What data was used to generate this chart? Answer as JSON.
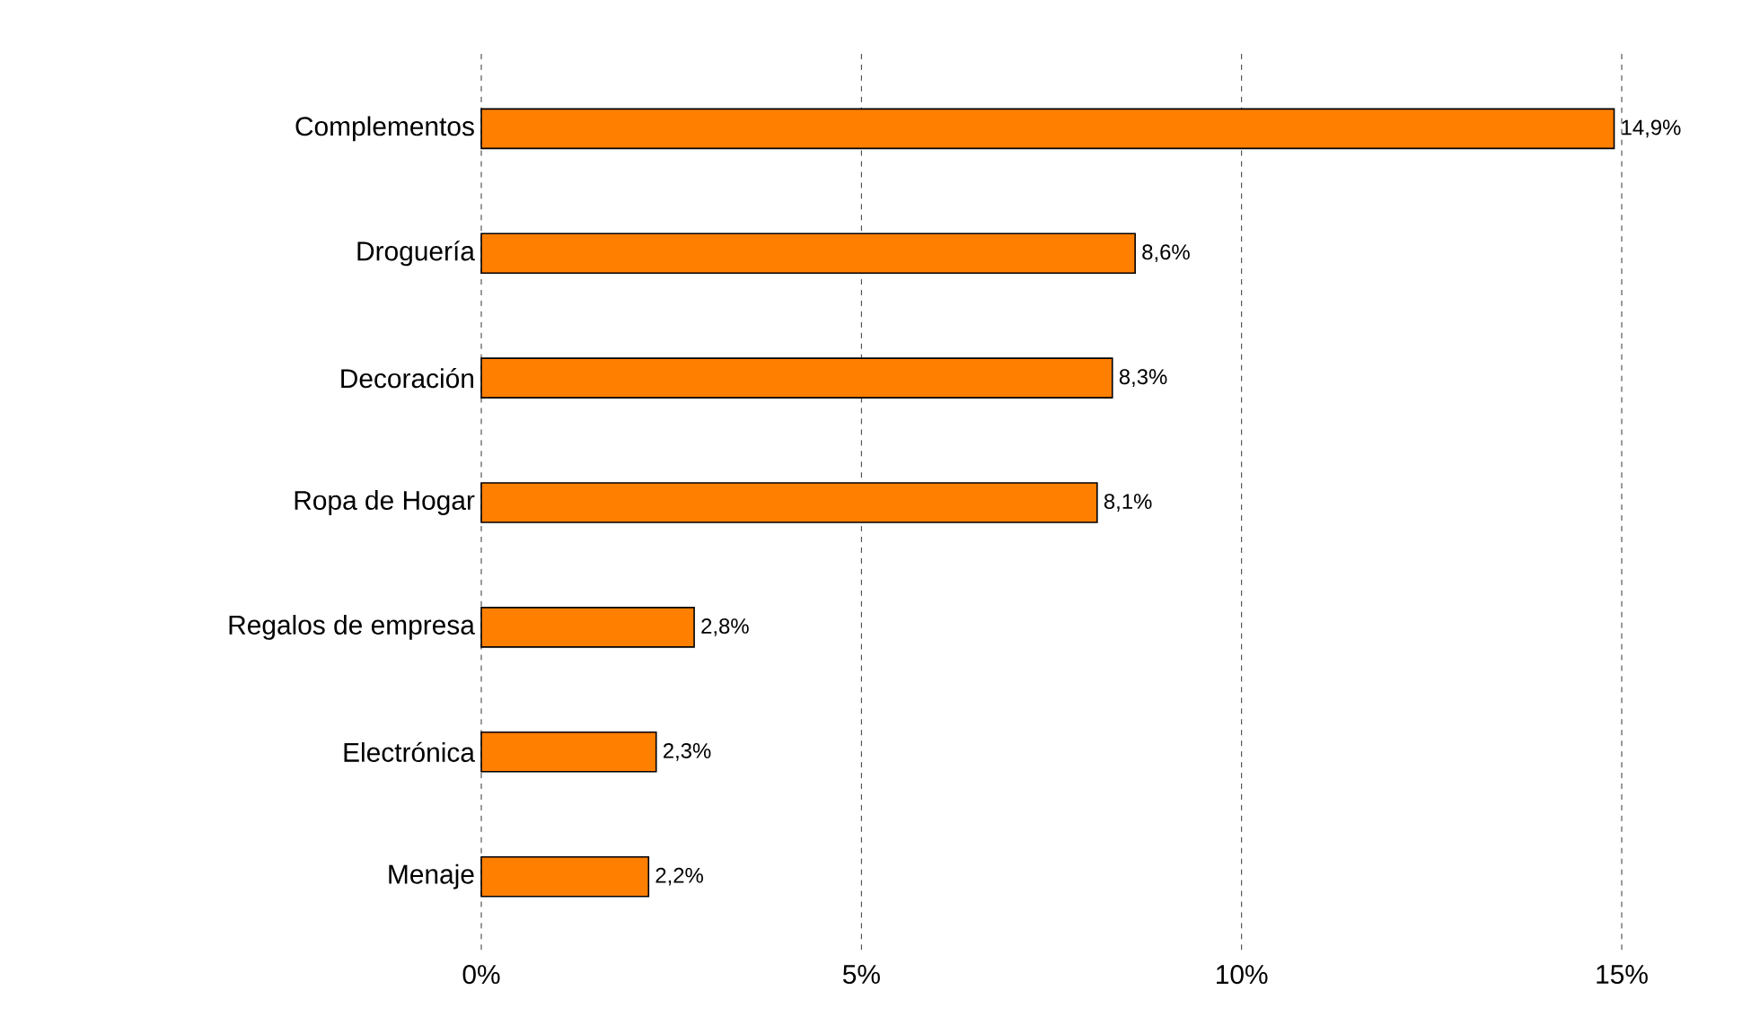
{
  "chart_data": {
    "type": "bar",
    "orientation": "horizontal",
    "categories": [
      "Complementos",
      "Droguería",
      "Decoración",
      "Ropa de Hogar",
      "Regalos de empresa",
      "Electrónica",
      "Menaje"
    ],
    "values": [
      14.9,
      8.6,
      8.3,
      8.1,
      2.8,
      2.3,
      2.2
    ],
    "value_labels": [
      "14,9%",
      "8,6%",
      "8,3%",
      "8,1%",
      "2,8%",
      "2,3%",
      "2,2%"
    ],
    "color": "#ff7f00",
    "xlim": [
      0,
      15
    ],
    "xticks": [
      {
        "value": 0,
        "label": "0%"
      },
      {
        "value": 5,
        "label": "5%"
      },
      {
        "value": 10,
        "label": "10%"
      },
      {
        "value": 15,
        "label": "15%"
      }
    ],
    "grid": "x"
  }
}
